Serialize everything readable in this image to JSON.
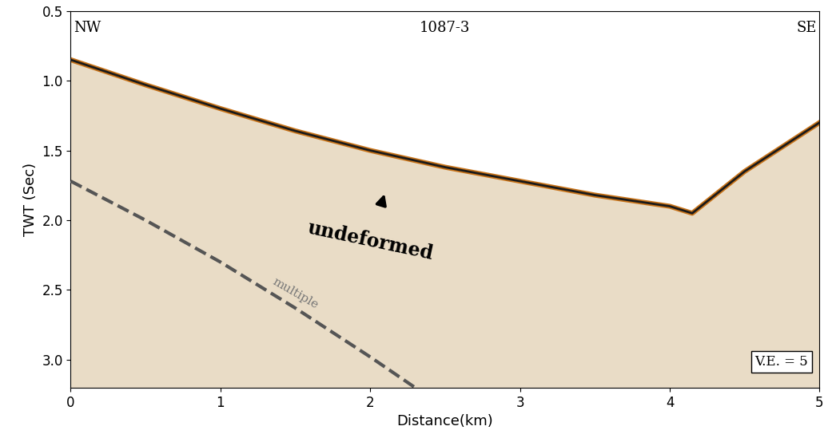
{
  "chart_data": {
    "type": "seismic_profile",
    "title": "1087-3",
    "annotations": [
      "NW",
      "SE",
      "undeformed",
      "multiple",
      "V.E. = 5"
    ],
    "x_label": "Distance(km)",
    "y_label": "TWT (Sec)",
    "xlim": [
      0,
      5
    ],
    "xticks": [
      0,
      1,
      2,
      3,
      4,
      5
    ],
    "ylim": [
      3.2,
      0.5
    ],
    "yticks": [
      0.5,
      1.0,
      1.5,
      2.0,
      2.5,
      3.0
    ],
    "series": [
      {
        "x": [
          0,
          0.5,
          1,
          1.5,
          2,
          2.5,
          3,
          3.5,
          4,
          4.15,
          4.5,
          5
        ],
        "values": [
          0.85,
          1.03,
          1.2,
          1.36,
          1.5,
          1.62,
          1.72,
          1.82,
          1.9,
          1.95,
          1.65,
          1.3
        ],
        "color": "#1a1a1a",
        "line_style": "solid"
      },
      {
        "x": [
          0,
          0.5,
          1,
          1.5,
          2,
          2.3
        ],
        "values": [
          1.72,
          2.0,
          2.3,
          2.63,
          2.98,
          3.2
        ],
        "color": "#555555",
        "line_style": "dashed"
      }
    ]
  }
}
